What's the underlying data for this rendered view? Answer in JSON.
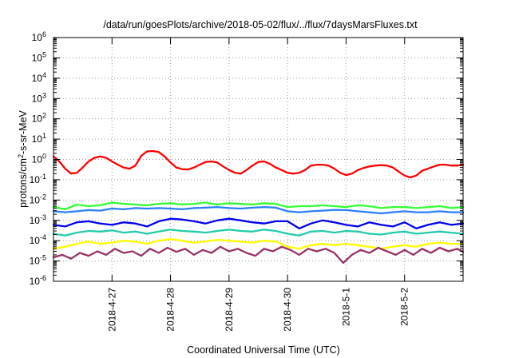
{
  "chart_data": {
    "type": "line",
    "title": "/data/run/goesPlots/archive/2018-05-02/flux/../flux/7daysMarsFluxes.txt",
    "xlabel": "Coordinated Universal Time (UTC)",
    "ylabel": "protons/cm2-s-sr-MeV",
    "ylabel_base": "protons/cm",
    "ylabel_sup": "2",
    "ylabel_rest": "-s-sr-MeV",
    "yscale": "log",
    "ylim": [
      1e-06,
      1000000.0
    ],
    "x_ticks": [
      "2018-4-27",
      "2018-4-28",
      "2018-4-29",
      "2018-4-30",
      "2018-5-1",
      "2018-5-2"
    ],
    "x_tick_positions": [
      1,
      2,
      3,
      4,
      5,
      6
    ],
    "xlim": [
      0,
      7
    ],
    "y_ticks": [
      {
        "base": "10",
        "exp": "-6"
      },
      {
        "base": "10",
        "exp": "-5"
      },
      {
        "base": "10",
        "exp": "-4"
      },
      {
        "base": "10",
        "exp": "-3"
      },
      {
        "base": "10",
        "exp": "-2"
      },
      {
        "base": "10",
        "exp": "-1"
      },
      {
        "base": "10",
        "exp": "0"
      },
      {
        "base": "10",
        "exp": "1"
      },
      {
        "base": "10",
        "exp": "2"
      },
      {
        "base": "10",
        "exp": "3"
      },
      {
        "base": "10",
        "exp": "4"
      },
      {
        "base": "10",
        "exp": "5"
      },
      {
        "base": "10",
        "exp": "6"
      }
    ],
    "grid": true,
    "series": [
      {
        "color": "#ff0000",
        "x": [
          0.0,
          0.1,
          0.2,
          0.3,
          0.4,
          0.5,
          0.6,
          0.7,
          0.8,
          0.9,
          1.0,
          1.1,
          1.2,
          1.3,
          1.4,
          1.5,
          1.6,
          1.7,
          1.8,
          1.9,
          2.0,
          2.1,
          2.2,
          2.3,
          2.4,
          2.5,
          2.6,
          2.7,
          2.8,
          2.9,
          3.0,
          3.1,
          3.2,
          3.3,
          3.4,
          3.5,
          3.6,
          3.7,
          3.8,
          3.9,
          4.0,
          4.1,
          4.2,
          4.3,
          4.4,
          4.5,
          4.6,
          4.7,
          4.8,
          4.9,
          5.0,
          5.1,
          5.2,
          5.3,
          5.4,
          5.5,
          5.6,
          5.7,
          5.8,
          5.9,
          6.0,
          6.1,
          6.2,
          6.3,
          6.4,
          6.5,
          6.6,
          6.7,
          6.8,
          6.9,
          7.0
        ],
        "y": [
          1.4,
          0.8,
          0.35,
          0.2,
          0.22,
          0.4,
          0.8,
          1.2,
          1.4,
          1.2,
          0.8,
          0.55,
          0.4,
          0.35,
          0.5,
          1.5,
          2.5,
          2.6,
          2.3,
          1.4,
          0.7,
          0.4,
          0.33,
          0.32,
          0.4,
          0.55,
          0.75,
          0.8,
          0.7,
          0.45,
          0.3,
          0.22,
          0.2,
          0.3,
          0.5,
          0.75,
          0.8,
          0.6,
          0.4,
          0.3,
          0.22,
          0.2,
          0.22,
          0.3,
          0.5,
          0.55,
          0.55,
          0.5,
          0.35,
          0.22,
          0.17,
          0.2,
          0.3,
          0.38,
          0.45,
          0.5,
          0.52,
          0.5,
          0.4,
          0.25,
          0.16,
          0.13,
          0.16,
          0.28,
          0.35,
          0.45,
          0.55,
          0.55,
          0.5,
          0.5,
          0.55
        ]
      },
      {
        "color": "#33ff33",
        "x": [
          0.0,
          0.2,
          0.4,
          0.6,
          0.8,
          1.0,
          1.2,
          1.4,
          1.6,
          1.8,
          2.0,
          2.2,
          2.4,
          2.6,
          2.8,
          3.0,
          3.2,
          3.4,
          3.6,
          3.8,
          4.0,
          4.2,
          4.4,
          4.6,
          4.8,
          5.0,
          5.2,
          5.4,
          5.6,
          5.8,
          6.0,
          6.2,
          6.4,
          6.6,
          6.8,
          7.0
        ],
        "y": [
          0.0045,
          0.0035,
          0.006,
          0.005,
          0.0055,
          0.0075,
          0.0065,
          0.006,
          0.0055,
          0.0065,
          0.007,
          0.006,
          0.0065,
          0.0075,
          0.006,
          0.007,
          0.0065,
          0.006,
          0.007,
          0.0065,
          0.0045,
          0.005,
          0.005,
          0.0055,
          0.005,
          0.0045,
          0.0055,
          0.005,
          0.004,
          0.0045,
          0.0045,
          0.004,
          0.0045,
          0.005,
          0.004,
          0.0045
        ]
      },
      {
        "color": "#2a7fff",
        "x": [
          0.0,
          0.2,
          0.4,
          0.6,
          0.8,
          1.0,
          1.2,
          1.4,
          1.6,
          1.8,
          2.0,
          2.2,
          2.4,
          2.6,
          2.8,
          3.0,
          3.2,
          3.4,
          3.6,
          3.8,
          4.0,
          4.2,
          4.4,
          4.6,
          4.8,
          5.0,
          5.2,
          5.4,
          5.6,
          5.8,
          6.0,
          6.2,
          6.4,
          6.6,
          6.8,
          7.0
        ],
        "y": [
          0.0028,
          0.0025,
          0.0028,
          0.0032,
          0.003,
          0.0038,
          0.0035,
          0.004,
          0.0038,
          0.004,
          0.0038,
          0.0035,
          0.004,
          0.0042,
          0.0045,
          0.004,
          0.0038,
          0.0042,
          0.0045,
          0.0042,
          0.0028,
          0.0025,
          0.0028,
          0.003,
          0.0033,
          0.0032,
          0.0028,
          0.0025,
          0.0022,
          0.0025,
          0.0028,
          0.0025,
          0.0025,
          0.0028,
          0.0025,
          0.0025
        ]
      },
      {
        "color": "#0000ee",
        "x": [
          0.0,
          0.2,
          0.4,
          0.6,
          0.8,
          1.0,
          1.2,
          1.4,
          1.6,
          1.8,
          2.0,
          2.2,
          2.4,
          2.6,
          2.8,
          3.0,
          3.2,
          3.4,
          3.6,
          3.8,
          4.0,
          4.2,
          4.4,
          4.6,
          4.8,
          5.0,
          5.2,
          5.4,
          5.6,
          5.8,
          6.0,
          6.2,
          6.4,
          6.6,
          6.8,
          7.0
        ],
        "y": [
          0.0006,
          0.0005,
          0.0008,
          0.0009,
          0.0007,
          0.0006,
          0.0008,
          0.0007,
          0.0005,
          0.0009,
          0.0012,
          0.0011,
          0.0009,
          0.0007,
          0.001,
          0.0012,
          0.001,
          0.0008,
          0.0007,
          0.0009,
          0.0009,
          0.0004,
          0.0007,
          0.001,
          0.0008,
          0.0006,
          0.0005,
          0.0008,
          0.0006,
          0.0005,
          0.0008,
          0.0004,
          0.0006,
          0.0008,
          0.0006,
          0.0007
        ]
      },
      {
        "color": "#22ccaa",
        "x": [
          0.0,
          0.2,
          0.4,
          0.6,
          0.8,
          1.0,
          1.2,
          1.4,
          1.6,
          1.8,
          2.0,
          2.2,
          2.4,
          2.6,
          2.8,
          3.0,
          3.2,
          3.4,
          3.6,
          3.8,
          4.0,
          4.2,
          4.4,
          4.6,
          4.8,
          5.0,
          5.2,
          5.4,
          5.6,
          5.8,
          6.0,
          6.2,
          6.4,
          6.6,
          6.8,
          7.0
        ],
        "y": [
          0.00022,
          0.00018,
          0.00025,
          0.0003,
          0.00028,
          0.00032,
          0.00025,
          0.00028,
          0.00022,
          0.00028,
          0.00035,
          0.0003,
          0.00028,
          0.00025,
          0.0003,
          0.00035,
          0.0003,
          0.00028,
          0.00035,
          0.0003,
          0.00022,
          0.00018,
          0.00028,
          0.0003,
          0.00025,
          0.0003,
          0.00028,
          0.00022,
          0.0002,
          0.00025,
          0.00028,
          0.00022,
          0.00025,
          0.00028,
          0.00025,
          0.00022
        ]
      },
      {
        "color": "#ffff00",
        "x": [
          0.0,
          0.2,
          0.4,
          0.6,
          0.8,
          1.0,
          1.2,
          1.4,
          1.6,
          1.8,
          2.0,
          2.2,
          2.4,
          2.6,
          2.8,
          3.0,
          3.2,
          3.4,
          3.6,
          3.8,
          4.0,
          4.2,
          4.4,
          4.6,
          4.8,
          5.0,
          5.2,
          5.4,
          5.6,
          5.8,
          6.0,
          6.2,
          6.4,
          6.6,
          6.8,
          7.0
        ],
        "y": [
          4e-05,
          5e-05,
          7e-05,
          9e-05,
          7e-05,
          8e-05,
          0.0001,
          9e-05,
          7e-05,
          0.0001,
          0.00012,
          0.0001,
          8e-05,
          9e-05,
          0.00011,
          0.0001,
          9e-05,
          8e-05,
          0.0001,
          9e-05,
          5e-05,
          4e-05,
          6e-05,
          7e-05,
          6e-05,
          7e-05,
          6e-05,
          5e-05,
          4e-05,
          5e-05,
          6e-05,
          5e-05,
          7e-05,
          8e-05,
          7e-05,
          7e-05
        ]
      },
      {
        "color": "#993366",
        "x": [
          0.0,
          0.15,
          0.3,
          0.45,
          0.6,
          0.75,
          0.9,
          1.05,
          1.2,
          1.35,
          1.5,
          1.65,
          1.8,
          1.95,
          2.1,
          2.25,
          2.4,
          2.55,
          2.7,
          2.85,
          3.0,
          3.15,
          3.3,
          3.45,
          3.6,
          3.75,
          3.9,
          4.05,
          4.2,
          4.35,
          4.5,
          4.65,
          4.8,
          4.95,
          5.1,
          5.25,
          5.4,
          5.55,
          5.7,
          5.85,
          6.0,
          6.15,
          6.3,
          6.45,
          6.6,
          6.75,
          6.9,
          7.0
        ],
        "y": [
          1.5e-05,
          2e-05,
          1.3e-05,
          2.5e-05,
          1.8e-05,
          3e-05,
          2e-05,
          4e-05,
          2.5e-05,
          3e-05,
          1.8e-05,
          4e-05,
          2.5e-05,
          4.5e-05,
          2.8e-05,
          4e-05,
          2e-05,
          3.5e-05,
          2.5e-05,
          5e-05,
          3e-05,
          4e-05,
          2.5e-05,
          1.8e-05,
          4e-05,
          3e-05,
          5e-05,
          3.5e-05,
          2e-05,
          4e-05,
          3e-05,
          4e-05,
          2.5e-05,
          8e-06,
          2e-05,
          3.5e-05,
          2.5e-05,
          4.5e-05,
          3e-05,
          2e-05,
          3.5e-05,
          2e-05,
          4e-05,
          2.5e-05,
          4.5e-05,
          3e-05,
          4e-05,
          2.8e-05
        ]
      }
    ]
  }
}
